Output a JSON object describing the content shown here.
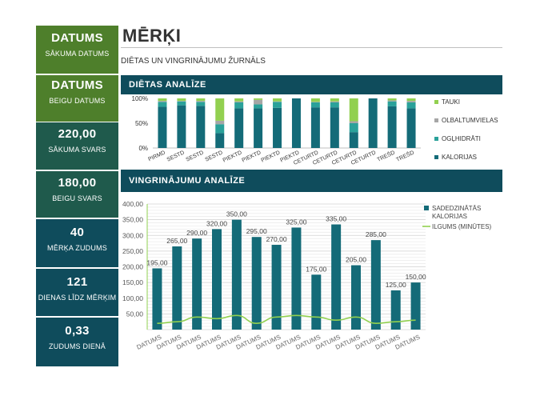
{
  "sidebar": [
    {
      "value": "DATUMS",
      "label": "SĀKUMA DATUMS",
      "color": "#4e7f2b"
    },
    {
      "value": "DATUMS",
      "label": "BEIGU DATUMS",
      "color": "#4e7f2b"
    },
    {
      "value": "220,00",
      "label": "SĀKUMA SVARS",
      "color": "#1f5a4c"
    },
    {
      "value": "180,00",
      "label": "BEIGU SVARS",
      "color": "#1f5a4c"
    },
    {
      "value": "40",
      "label": "MĒRĶA ZUDUMS",
      "color": "#0f4c5c"
    },
    {
      "value": "121",
      "label": "DIENAS LĪDZ MĒRĶIM",
      "color": "#0f4c5c"
    },
    {
      "value": "0,33",
      "label": "ZUDUMS DIENĀ",
      "color": "#0f4c5c"
    }
  ],
  "header": {
    "title": "MĒRĶI",
    "subtitle": "DIĒTAS UN VINGRINĀJUMU ŽURNĀLS"
  },
  "sections": {
    "diet": "DIĒTAS ANALĪZE",
    "exercise": "VINGRINĀJUMU ANALĪZE"
  },
  "chart_data": [
    {
      "type": "bar",
      "stacked": "100%",
      "categories": [
        "PIRMD",
        "SESTD",
        "SESTD",
        "SESTD",
        "PIEKTD",
        "PIEKTD",
        "PIEKTD",
        "PIEKTD",
        "CETURTD",
        "CETURTD",
        "CETURTD",
        "CETURTD",
        "TREŠD",
        "TREŠD"
      ],
      "series": [
        {
          "name": "KALORIJAS",
          "color": "#146b78",
          "values": [
            83,
            86,
            85,
            30,
            80,
            80,
            81,
            100,
            82,
            82,
            32,
            100,
            84,
            80
          ]
        },
        {
          "name": "OGĻHIDRĀTI",
          "color": "#2aa19a",
          "values": [
            10,
            8,
            8,
            18,
            12,
            8,
            12,
            0,
            10,
            10,
            18,
            0,
            10,
            12
          ]
        },
        {
          "name": "OLBALTUMVIELAS",
          "color": "#a6a6a6",
          "values": [
            2,
            1,
            2,
            7,
            2,
            9,
            1,
            0,
            1,
            2,
            4,
            0,
            2,
            3
          ]
        },
        {
          "name": "TAUKI",
          "color": "#92d050",
          "values": [
            5,
            5,
            5,
            45,
            6,
            3,
            6,
            0,
            7,
            6,
            46,
            0,
            4,
            5
          ]
        }
      ],
      "yticks": [
        "100%",
        "50%",
        "0%"
      ],
      "legend": "right"
    },
    {
      "type": "bar+line",
      "categories": [
        "DATUMS",
        "DATUMS",
        "DATUMS",
        "DATUMS",
        "DATUMS",
        "DATUMS",
        "DATUMS",
        "DATUMS",
        "DATUMS",
        "DATUMS",
        "DATUMS",
        "DATUMS",
        "DATUMS",
        "DATUMS"
      ],
      "series": [
        {
          "name": "SADEDZINĀTĀS KALORIJAS",
          "type": "bar",
          "color": "#146b78",
          "values": [
            195,
            265,
            290,
            320,
            350,
            295,
            270,
            325,
            175,
            335,
            205,
            285,
            125,
            150
          ],
          "labels": [
            "195,00",
            "265,00",
            "290,00",
            "320,00",
            "350,00",
            "295,00",
            "270,00",
            "325,00",
            "175,00",
            "335,00",
            "205,00",
            "285,00",
            "125,00",
            "150,00"
          ]
        },
        {
          "name": "ILGUMS (MINŪTES)",
          "type": "line",
          "color": "#92d050",
          "values": [
            20,
            25,
            40,
            35,
            45,
            20,
            40,
            45,
            40,
            30,
            40,
            20,
            25,
            30
          ]
        }
      ],
      "yticks": [
        "400,00",
        "350,00",
        "300,00",
        "250,00",
        "200,00",
        "150,00",
        "100,00",
        "50,00"
      ],
      "ylim": [
        0,
        400
      ],
      "grid": true,
      "legend": "right"
    }
  ]
}
